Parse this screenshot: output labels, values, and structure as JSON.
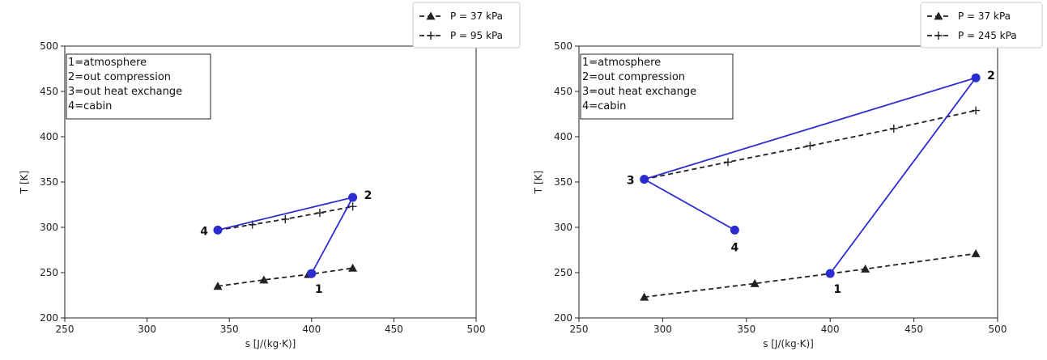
{
  "chart_data": [
    {
      "type": "line",
      "title": "",
      "xlabel": "s [J/(kg·K)]",
      "ylabel": "T [K]",
      "xlim": [
        250,
        500
      ],
      "ylim": [
        200,
        500
      ],
      "xticks": [
        250,
        300,
        350,
        400,
        450,
        500
      ],
      "yticks": [
        200,
        250,
        300,
        350,
        400,
        450,
        500
      ],
      "grid": false,
      "legend": {
        "placement": "above-top-right",
        "entries": [
          "P = 37 kPa",
          "P = 95 kPa"
        ]
      },
      "annotation_box": {
        "lines": [
          "1=atmosphere",
          "2=out compression",
          "3=out heat exchange",
          "4=cabin"
        ]
      },
      "series": [
        {
          "name": "P = 37 kPa",
          "style": "dashed",
          "marker": "triangle",
          "color": "#222222",
          "x": [
            343,
            371,
            398,
            425
          ],
          "y": [
            235,
            242,
            248,
            255
          ]
        },
        {
          "name": "P = 95 kPa",
          "style": "dashed",
          "marker": "plus",
          "color": "#222222",
          "x": [
            343,
            364,
            384,
            405,
            425
          ],
          "y": [
            297,
            303,
            309,
            316,
            323
          ]
        },
        {
          "style": "solid",
          "marker": "circle",
          "color": "#2c2cd0",
          "x": [
            400,
            425,
            343
          ],
          "y": [
            249,
            333,
            297
          ]
        }
      ],
      "points": [
        {
          "label": "1",
          "x": 400,
          "y": 249,
          "pos": "below-right"
        },
        {
          "label": "2",
          "x": 425,
          "y": 333,
          "pos": "right"
        },
        {
          "label": "4",
          "x": 343,
          "y": 297,
          "pos": "left"
        }
      ]
    },
    {
      "type": "line",
      "title": "",
      "xlabel": "s [J/(kg·K)]",
      "ylabel": "T [K]",
      "xlim": [
        250,
        500
      ],
      "ylim": [
        200,
        500
      ],
      "xticks": [
        250,
        300,
        350,
        400,
        450,
        500
      ],
      "yticks": [
        200,
        250,
        300,
        350,
        400,
        450,
        500
      ],
      "grid": false,
      "legend": {
        "placement": "above-top-right",
        "entries": [
          "P = 37 kPa",
          "P = 245 kPa"
        ]
      },
      "annotation_box": {
        "lines": [
          "1=atmosphere",
          "2=out compression",
          "3=out heat exchange",
          "4=cabin"
        ]
      },
      "series": [
        {
          "name": "P = 37 kPa",
          "style": "dashed",
          "marker": "triangle",
          "color": "#222222",
          "x": [
            289,
            355,
            421,
            487
          ],
          "y": [
            223,
            238,
            254,
            271
          ]
        },
        {
          "name": "P = 245 kPa",
          "style": "dashed",
          "marker": "plus",
          "color": "#222222",
          "x": [
            289,
            339,
            388,
            438,
            487
          ],
          "y": [
            353,
            372,
            390,
            409,
            429
          ]
        },
        {
          "style": "solid",
          "marker": "circle",
          "color": "#2c2cd0",
          "x": [
            400,
            487,
            289,
            343
          ],
          "y": [
            249,
            465,
            353,
            297
          ]
        }
      ],
      "points": [
        {
          "label": "1",
          "x": 400,
          "y": 249,
          "pos": "below-right"
        },
        {
          "label": "2",
          "x": 487,
          "y": 465,
          "pos": "right"
        },
        {
          "label": "3",
          "x": 289,
          "y": 353,
          "pos": "left"
        },
        {
          "label": "4",
          "x": 343,
          "y": 297,
          "pos": "below"
        }
      ]
    }
  ]
}
